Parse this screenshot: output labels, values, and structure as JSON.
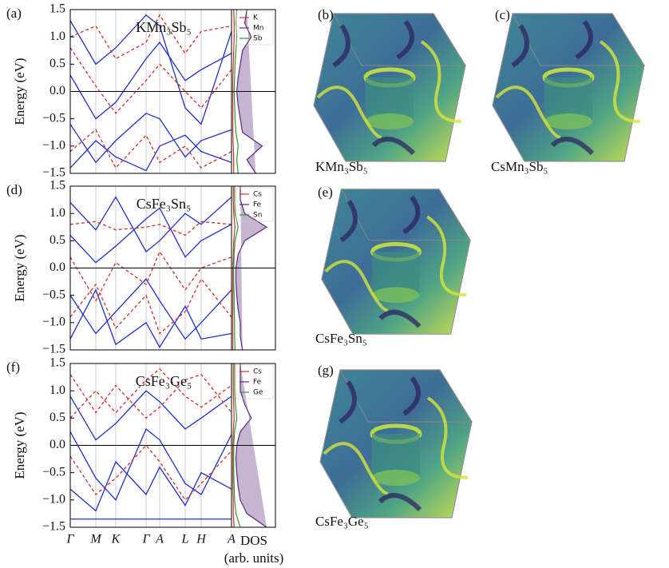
{
  "figure": {
    "y_label": "Energy (eV)",
    "dos_label": "DOS",
    "dos_units": "(arb. units)",
    "fermi_surfaces": [
      {
        "label": "(b)",
        "caption": "KMn₃Sb₅"
      },
      {
        "label": "(c)",
        "caption": "CsMn₃Sb₅"
      },
      {
        "label": "(e)",
        "caption": "CsFe₃Sn₅"
      },
      {
        "label": "(g)",
        "caption": "CsFe₃Ge₅"
      }
    ]
  },
  "chart_data": [
    {
      "type": "line",
      "panel_label": "(a)",
      "title": "KMn₃Sb₅",
      "xlim": [
        0,
        202
      ],
      "ylim": [
        -1.5,
        1.5
      ],
      "yticks": [
        {
          "value": -1.5,
          "label": "−1.5"
        },
        {
          "value": -1,
          "label": "−1.0"
        },
        {
          "value": -0.5,
          "label": "−0.5"
        },
        {
          "value": 0,
          "label": "0.0"
        },
        0.5,
        {
          "value": 1,
          "label": "1.0"
        },
        1.5
      ],
      "xticks": [
        0,
        32,
        57,
        95,
        112,
        144,
        164,
        202
      ],
      "x": [
        0,
        32,
        57,
        95,
        112,
        144,
        164,
        202
      ],
      "series": [
        {
          "color": "#1f2fd0",
          "style": "solid",
          "values": [
            -1.4,
            -0.9,
            -1.2,
            -1.45,
            -1.0,
            -0.8,
            -1.1,
            -1.3
          ]
        },
        {
          "color": "#1f2fd0",
          "style": "solid",
          "values": [
            0.3,
            -0.5,
            -0.2,
            0.6,
            0.9,
            0.2,
            0.4,
            0.7
          ]
        },
        {
          "color": "#1f2fd0",
          "style": "solid",
          "values": [
            1.3,
            0.5,
            0.8,
            1.4,
            1.2,
            -0.3,
            -0.6,
            1.1
          ]
        },
        {
          "color": "#1f2fd0",
          "style": "solid",
          "values": [
            -0.6,
            -1.3,
            -0.9,
            -0.4,
            -0.5,
            -1.2,
            -0.9,
            -0.7
          ]
        },
        {
          "color": "#d0302a",
          "style": "dashed",
          "values": [
            1.0,
            1.2,
            0.6,
            0.9,
            1.4,
            0.7,
            1.1,
            1.2
          ]
        },
        {
          "color": "#d0302a",
          "style": "dashed",
          "values": [
            -1.1,
            -0.7,
            -1.4,
            -0.8,
            -1.3,
            -1.0,
            -1.4,
            -1.1
          ]
        },
        {
          "color": "#d0302a",
          "style": "dashed",
          "values": [
            0.8,
            0.1,
            -0.4,
            0.2,
            0.5,
            0.0,
            -0.3,
            0.4
          ]
        }
      ],
      "dos": {
        "xlim": [
          0,
          1
        ],
        "energies": [
          -1.5,
          -1.25,
          -1,
          -0.75,
          -0.5,
          -0.25,
          0,
          0.25,
          0.5,
          0.75,
          1,
          1.25,
          1.5
        ],
        "series": [
          {
            "name": "K",
            "color": "#d0302a",
            "values": [
              0.05,
              0.05,
              0.04,
              0.03,
              0.03,
              0.03,
              0.03,
              0.03,
              0.04,
              0.05,
              0.06,
              0.06,
              0.05
            ]
          },
          {
            "name": "Mn",
            "color": "#5a2a7a",
            "values": [
              0.55,
              0.35,
              0.7,
              0.25,
              0.2,
              0.15,
              0.12,
              0.15,
              0.2,
              0.25,
              0.45,
              0.3,
              0.35
            ]
          },
          {
            "name": "Sb",
            "color": "#2a9a2a",
            "values": [
              0.15,
              0.12,
              0.15,
              0.1,
              0.08,
              0.07,
              0.06,
              0.07,
              0.08,
              0.1,
              0.12,
              0.1,
              0.12
            ]
          }
        ]
      }
    },
    {
      "type": "line",
      "panel_label": "(d)",
      "title": "CsFe₃Sn₅",
      "xlim": [
        0,
        202
      ],
      "ylim": [
        -1.5,
        1.5
      ],
      "yticks": [
        {
          "value": -1.5,
          "label": "−1.5"
        },
        {
          "value": -1,
          "label": "−1.0"
        },
        {
          "value": -0.5,
          "label": "−0.5"
        },
        {
          "value": 0,
          "label": "0.0"
        },
        0.5,
        {
          "value": 1,
          "label": "1.0"
        },
        1.5
      ],
      "xticks": [
        0,
        32,
        57,
        95,
        112,
        144,
        164,
        202
      ],
      "x": [
        0,
        32,
        57,
        95,
        112,
        144,
        164,
        202
      ],
      "series": [
        {
          "color": "#1f2fd0",
          "style": "solid",
          "values": [
            -0.5,
            -1.2,
            -0.8,
            -0.2,
            -0.6,
            -1.3,
            -1.0,
            -0.4
          ]
        },
        {
          "color": "#1f2fd0",
          "style": "solid",
          "values": [
            0.6,
            0.1,
            0.4,
            0.9,
            1.1,
            0.2,
            0.5,
            0.8
          ]
        },
        {
          "color": "#1f2fd0",
          "style": "solid",
          "values": [
            -1.3,
            -0.4,
            -1.4,
            -1.0,
            -1.45,
            -0.7,
            -1.3,
            -1.2
          ]
        },
        {
          "color": "#1f2fd0",
          "style": "solid",
          "values": [
            1.2,
            0.7,
            1.3,
            0.3,
            0.5,
            1.0,
            0.8,
            1.3
          ]
        },
        {
          "color": "#d0302a",
          "style": "dashed",
          "values": [
            0.8,
            0.85,
            0.7,
            0.75,
            0.8,
            0.6,
            0.85,
            0.8
          ]
        },
        {
          "color": "#d0302a",
          "style": "dashed",
          "values": [
            -0.9,
            -0.3,
            -1.1,
            -0.5,
            -1.2,
            -0.8,
            -0.2,
            -0.9
          ]
        },
        {
          "color": "#d0302a",
          "style": "dashed",
          "values": [
            0.2,
            -0.6,
            0.1,
            -0.3,
            0.3,
            -0.4,
            0.0,
            0.2
          ]
        }
      ],
      "dos": {
        "xlim": [
          0,
          1
        ],
        "energies": [
          -1.5,
          -1.25,
          -1,
          -0.75,
          -0.5,
          -0.25,
          0,
          0.25,
          0.5,
          0.75,
          1,
          1.25,
          1.5
        ],
        "series": [
          {
            "name": "Cs",
            "color": "#d0302a",
            "values": [
              0.03,
              0.03,
              0.03,
              0.03,
              0.03,
              0.03,
              0.03,
              0.04,
              0.05,
              0.08,
              0.05,
              0.04,
              0.04
            ]
          },
          {
            "name": "Fe",
            "color": "#5a2a7a",
            "values": [
              0.25,
              0.2,
              0.2,
              0.15,
              0.12,
              0.1,
              0.1,
              0.15,
              0.3,
              0.8,
              0.3,
              0.2,
              0.2
            ]
          },
          {
            "name": "Sn",
            "color": "#2a9a2a",
            "values": [
              0.08,
              0.07,
              0.07,
              0.06,
              0.06,
              0.05,
              0.05,
              0.06,
              0.08,
              0.15,
              0.08,
              0.07,
              0.07
            ]
          }
        ]
      }
    },
    {
      "type": "line",
      "panel_label": "(f)",
      "title": "CsFe₃Ge₅",
      "xlim": [
        0,
        202
      ],
      "ylim": [
        -1.5,
        1.5
      ],
      "yticks": [
        {
          "value": -1.5,
          "label": "−1.5"
        },
        {
          "value": -1,
          "label": "−1.0"
        },
        {
          "value": -0.5,
          "label": "−0.5"
        },
        {
          "value": 0,
          "label": "0.0"
        },
        0.5,
        {
          "value": 1,
          "label": "1.0"
        },
        1.5
      ],
      "xticks": [
        {
          "value": 0,
          "label": "Γ"
        },
        {
          "value": 32,
          "label": "M"
        },
        {
          "value": 57,
          "label": "K"
        },
        {
          "value": 95,
          "label": "Γ"
        },
        {
          "value": 112,
          "label": "A"
        },
        {
          "value": 144,
          "label": "L"
        },
        {
          "value": 164,
          "label": "H"
        },
        {
          "value": 202,
          "label": "A"
        }
      ],
      "x": [
        0,
        32,
        57,
        95,
        112,
        144,
        164,
        202
      ],
      "series": [
        {
          "color": "#1f2fd0",
          "style": "solid",
          "values": [
            0.25,
            -0.6,
            -1.0,
            0.3,
            0.1,
            -0.7,
            -0.9,
            0.2
          ]
        },
        {
          "color": "#1f2fd0",
          "style": "solid",
          "values": [
            -1.35,
            -1.35,
            -1.35,
            -1.35,
            -1.35,
            -1.35,
            -1.35,
            -1.35
          ]
        },
        {
          "color": "#1f2fd0",
          "style": "solid",
          "values": [
            0.9,
            0.1,
            0.4,
            1.0,
            0.8,
            0.3,
            0.5,
            0.9
          ]
        },
        {
          "color": "#1f2fd0",
          "style": "solid",
          "values": [
            -0.8,
            -1.2,
            -0.3,
            -0.9,
            -0.4,
            -1.1,
            -0.5,
            -0.8
          ]
        },
        {
          "color": "#d0302a",
          "style": "dashed",
          "values": [
            0.5,
            1.0,
            0.6,
            1.2,
            1.4,
            0.9,
            0.7,
            1.1
          ]
        },
        {
          "color": "#d0302a",
          "style": "dashed",
          "values": [
            -0.2,
            -0.9,
            -0.6,
            0.0,
            -0.3,
            -1.0,
            -0.7,
            -0.1
          ]
        },
        {
          "color": "#d0302a",
          "style": "dashed",
          "values": [
            1.3,
            0.6,
            1.1,
            0.5,
            0.7,
            1.2,
            1.3,
            0.6
          ]
        }
      ],
      "dos": {
        "xlim": [
          0,
          1
        ],
        "energies": [
          -1.5,
          -1.25,
          -1,
          -0.75,
          -0.5,
          -0.25,
          0,
          0.25,
          0.5,
          0.75,
          1,
          1.25,
          1.5
        ],
        "series": [
          {
            "name": "Cs",
            "color": "#d0302a",
            "values": [
              0.06,
              0.04,
              0.04,
              0.03,
              0.03,
              0.03,
              0.03,
              0.04,
              0.06,
              0.05,
              0.04,
              0.04,
              0.04
            ]
          },
          {
            "name": "Fe",
            "color": "#5a2a7a",
            "values": [
              0.8,
              0.35,
              0.2,
              0.15,
              0.12,
              0.1,
              0.12,
              0.2,
              0.45,
              0.3,
              0.2,
              0.2,
              0.2
            ]
          },
          {
            "name": "Ge",
            "color": "#2a9a2a",
            "values": [
              0.2,
              0.1,
              0.07,
              0.06,
              0.05,
              0.05,
              0.05,
              0.07,
              0.12,
              0.09,
              0.07,
              0.07,
              0.07
            ]
          }
        ]
      }
    }
  ]
}
